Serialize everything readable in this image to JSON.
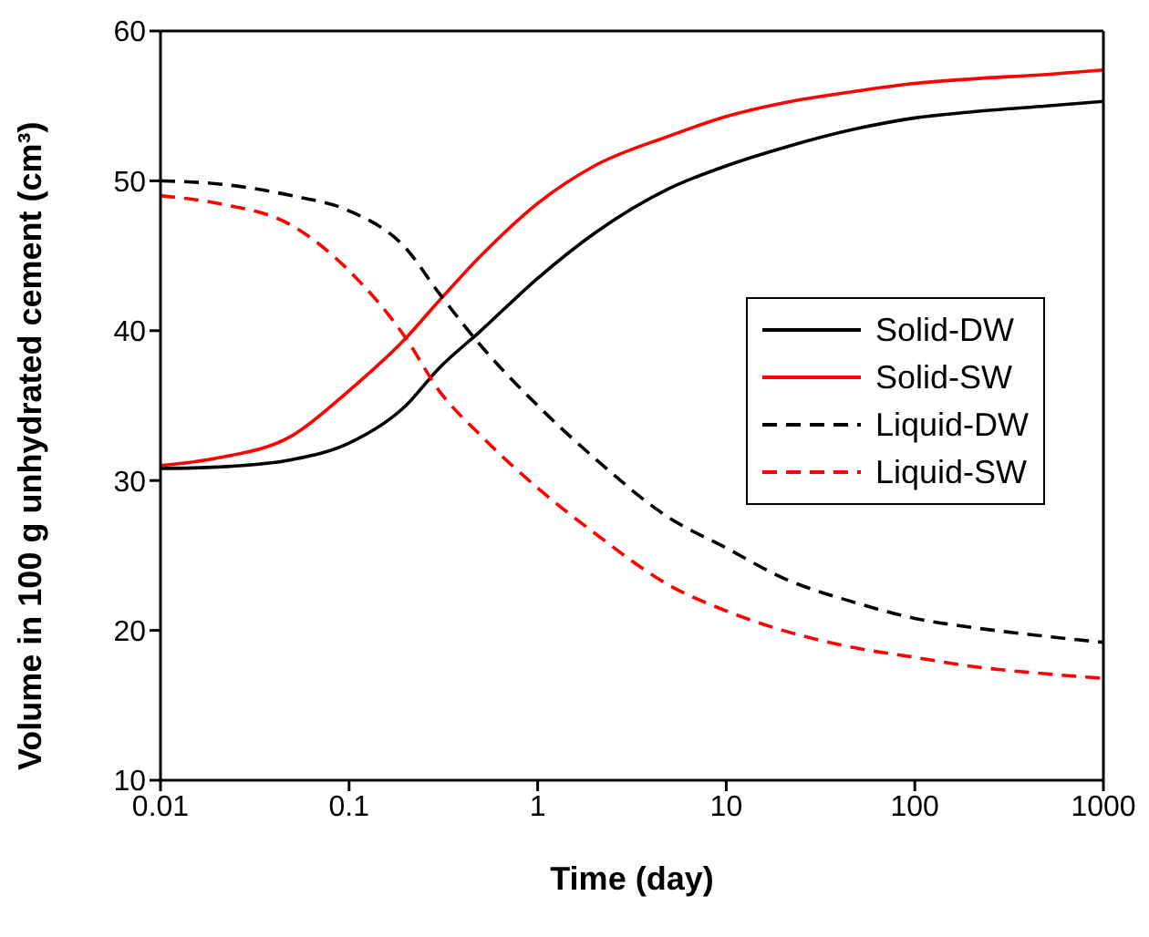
{
  "chart_data": {
    "type": "line",
    "xlabel": "Time (day)",
    "ylabel": "Volume in 100 g unhydrated cement (cm³)",
    "log": "x",
    "xlim": [
      0.01,
      1000
    ],
    "xticks": [
      0.01,
      0.1,
      1,
      10,
      100,
      1000
    ],
    "ylim": [
      10,
      60
    ],
    "yticks": [
      10,
      20,
      30,
      40,
      50,
      60
    ],
    "grid": false,
    "legend": "right",
    "marker": "none",
    "x": [
      0.01,
      0.02,
      0.05,
      0.1,
      0.2,
      0.3,
      0.5,
      1,
      2,
      5,
      10,
      20,
      50,
      100,
      200,
      500,
      1000
    ],
    "series": [
      {
        "name": "Solid-DW",
        "color": "#000000",
        "line_style": "solid",
        "values": [
          30.8,
          30.9,
          31.4,
          32.5,
          35,
          37.5,
          40,
          43.5,
          46.5,
          49.5,
          51,
          52.2,
          53.5,
          54.2,
          54.6,
          55,
          55.3
        ]
      },
      {
        "name": "Solid-SW",
        "color": "#ff0000",
        "line_style": "solid",
        "values": [
          31,
          31.5,
          33,
          36,
          39.5,
          42,
          45,
          48.5,
          51,
          53,
          54.3,
          55.2,
          56,
          56.5,
          56.8,
          57.1,
          57.4
        ]
      },
      {
        "name": "Liquid-DW",
        "color": "#000000",
        "line_style": "dashed",
        "values": [
          50,
          49.8,
          49,
          48,
          45.5,
          42.5,
          39,
          35,
          31.5,
          27.5,
          25.5,
          23.5,
          21.8,
          20.8,
          20.2,
          19.6,
          19.2
        ]
      },
      {
        "name": "Liquid-SW",
        "color": "#ff0000",
        "line_style": "dashed",
        "values": [
          49,
          48.5,
          47,
          44,
          39.5,
          36,
          33,
          29.5,
          26.5,
          23,
          21.3,
          20,
          18.8,
          18.2,
          17.6,
          17.1,
          16.8
        ]
      }
    ]
  }
}
